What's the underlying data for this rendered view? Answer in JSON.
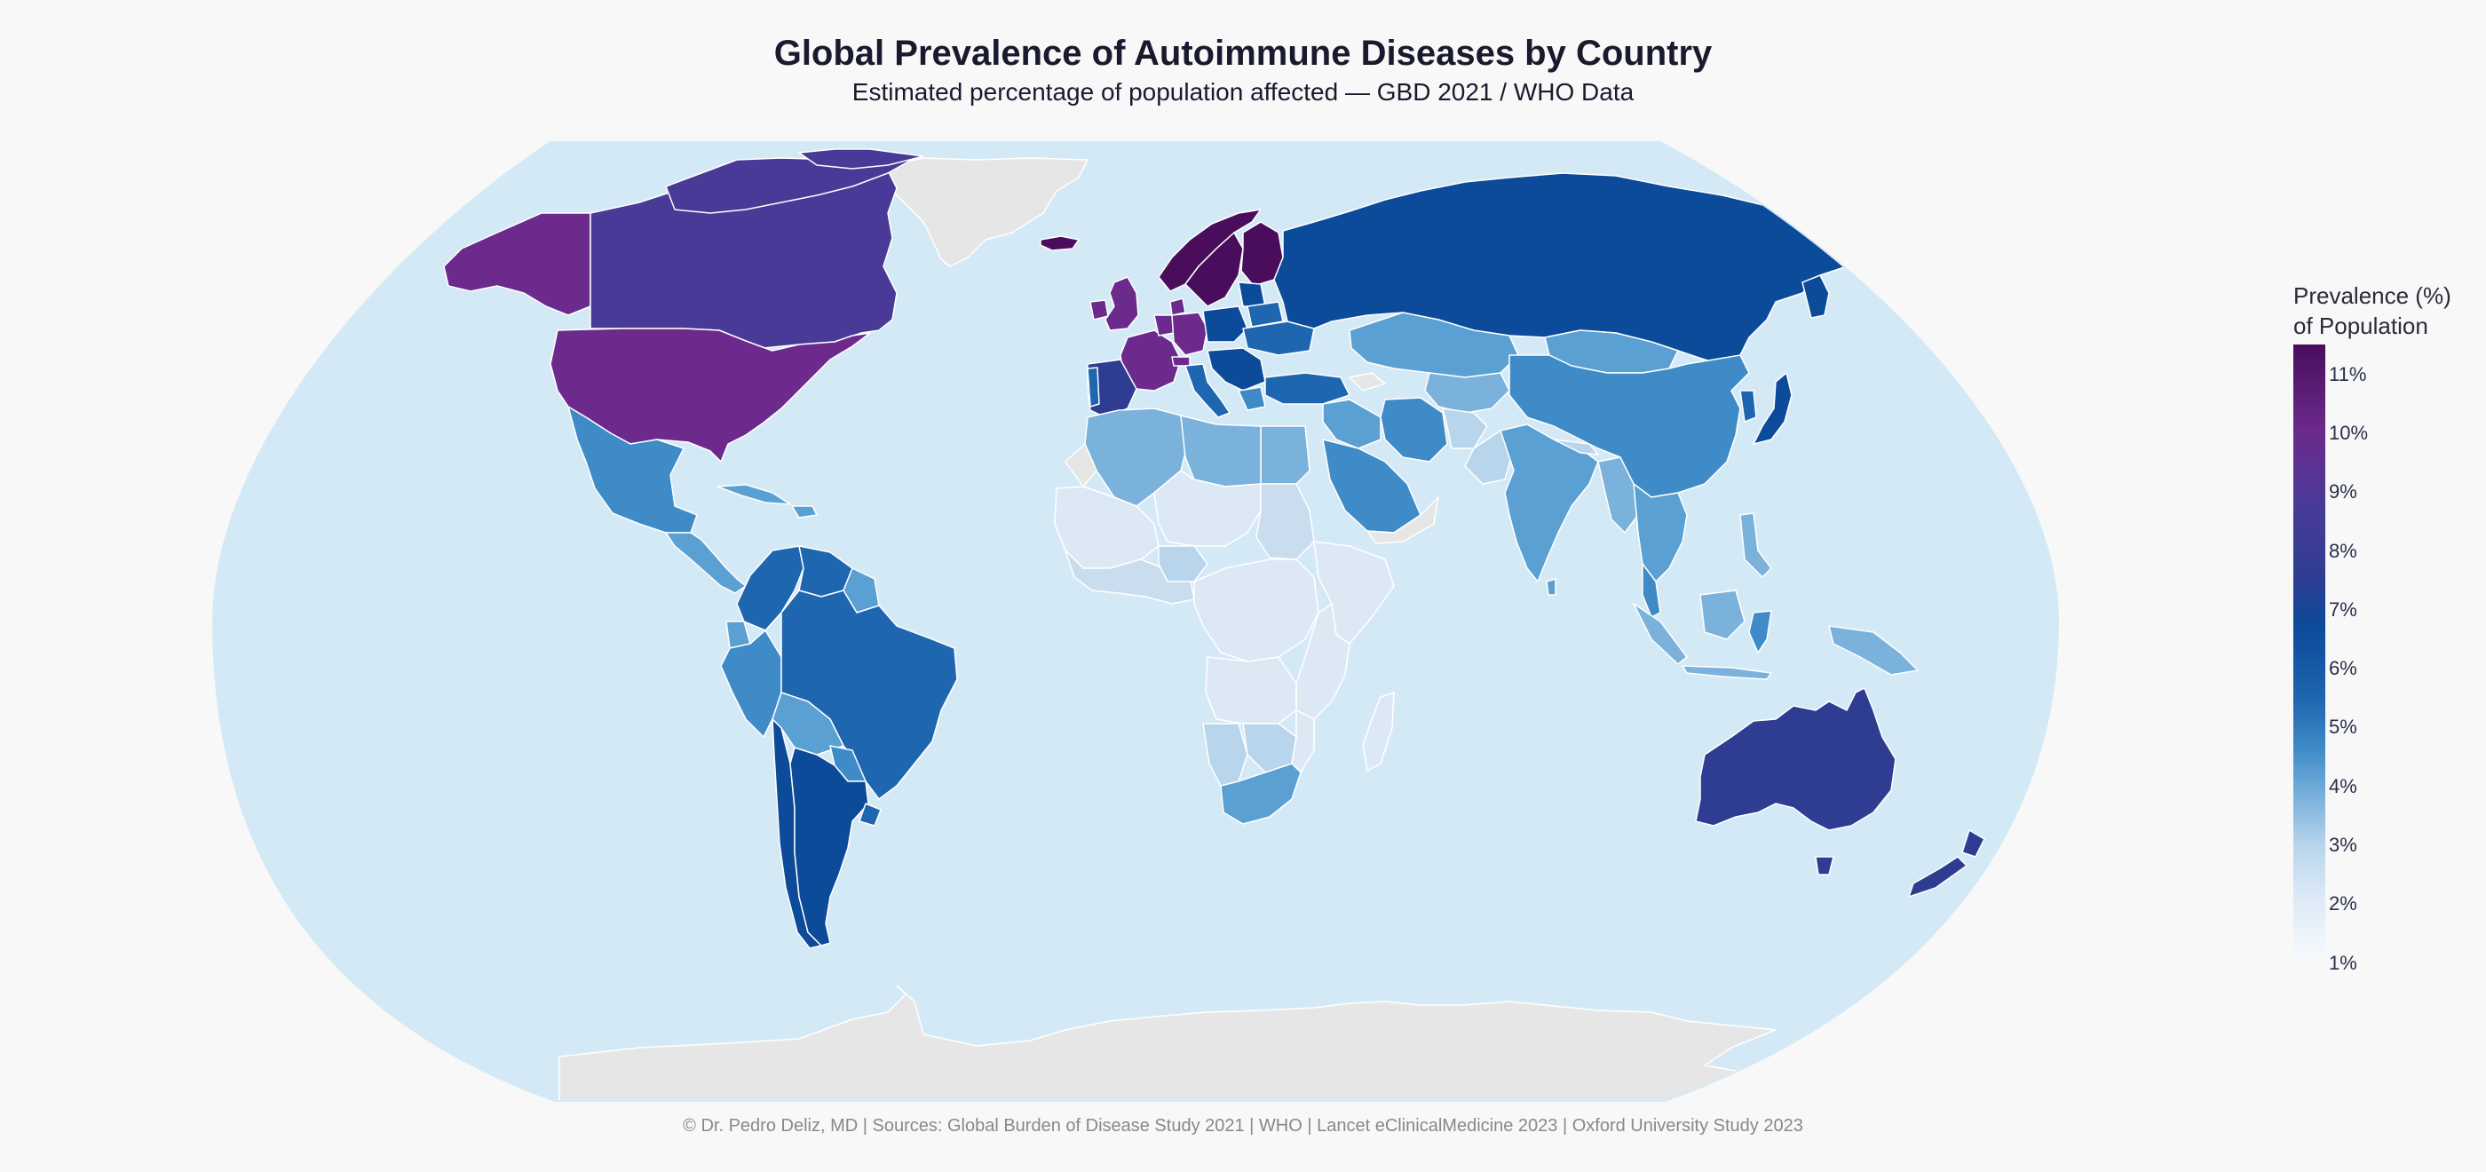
{
  "header": {
    "title": "Global Prevalence of Autoimmune Diseases by Country",
    "subtitle": "Estimated percentage of population affected — GBD 2021 / WHO Data"
  },
  "legend": {
    "title_line1": "Prevalence (%)",
    "title_line2": "of Population",
    "ticks": [
      "11%",
      "10%",
      "9%",
      "8%",
      "7%",
      "6%",
      "5%",
      "4%",
      "3%",
      "2%",
      "1%"
    ],
    "colors": {
      "max": "#4a0d5c",
      "high": "#6b2a8c",
      "mid_high": "#2e3d92",
      "mid": "#1f66b0",
      "mid_low": "#7ab2dc",
      "low": "#dce9f5",
      "min": "#f5f9fd"
    }
  },
  "map": {
    "ocean_color": "#d4e9f6",
    "no_data_color": "#e6e6e6",
    "projection": "natural-earth"
  },
  "footer": {
    "text": "© Dr. Pedro Deliz, MD | Sources: Global Burden of Disease Study 2021 | WHO | Lancet eClinicalMedicine 2023 | Oxford University Study 2023"
  }
}
